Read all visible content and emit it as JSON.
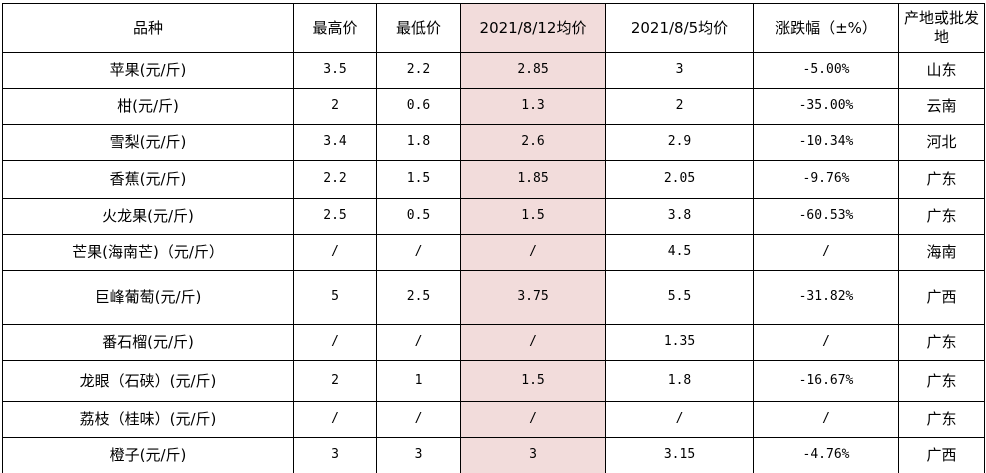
{
  "colors": {
    "highlight_column_bg": "#f2dcdb",
    "border": "#000000",
    "page_bg": "#ffffff",
    "text": "#000000"
  },
  "table": {
    "columns": [
      {
        "key": "name",
        "label": "品种",
        "highlight": false,
        "numeric": false
      },
      {
        "key": "high",
        "label": "最高价",
        "highlight": false,
        "numeric": true
      },
      {
        "key": "low",
        "label": "最低价",
        "highlight": false,
        "numeric": true
      },
      {
        "key": "avg12",
        "label": "2021/8/12均价",
        "highlight": true,
        "numeric": true
      },
      {
        "key": "avg05",
        "label": "2021/8/5均价",
        "highlight": false,
        "numeric": true
      },
      {
        "key": "change",
        "label": "涨跌幅（±%）",
        "highlight": false,
        "numeric": true
      },
      {
        "key": "origin",
        "label": "产地或批发地",
        "highlight": false,
        "numeric": false
      }
    ],
    "rows": [
      [
        "苹果(元/斤)",
        "3.5",
        "2.2",
        "2.85",
        "3",
        "-5.00%",
        "山东"
      ],
      [
        "柑(元/斤)",
        "2",
        "0.6",
        "1.3",
        "2",
        "-35.00%",
        "云南"
      ],
      [
        "雪梨(元/斤)",
        "3.4",
        "1.8",
        "2.6",
        "2.9",
        "-10.34%",
        "河北"
      ],
      [
        "香蕉(元/斤)",
        "2.2",
        "1.5",
        "1.85",
        "2.05",
        "-9.76%",
        "广东"
      ],
      [
        "火龙果(元/斤)",
        "2.5",
        "0.5",
        "1.5",
        "3.8",
        "-60.53%",
        "广东"
      ],
      [
        "芒果(海南芒)（元/斤）",
        "/",
        "/",
        "/",
        "4.5",
        "/",
        "海南"
      ],
      [
        "巨峰葡萄(元/斤)",
        "5",
        "2.5",
        "3.75",
        "5.5",
        "-31.82%",
        "广西"
      ],
      [
        "番石榴(元/斤)",
        "/",
        "/",
        "/",
        "1.35",
        "/",
        "广东"
      ],
      [
        "龙眼（石硖）(元/斤)",
        "2",
        "1",
        "1.5",
        "1.8",
        "-16.67%",
        "广东"
      ],
      [
        "荔枝（桂味）(元/斤)",
        "/",
        "/",
        "/",
        "/",
        "/",
        "广东"
      ],
      [
        "橙子(元/斤)",
        "3",
        "3",
        "3",
        "3.15",
        "-4.76%",
        "广西"
      ]
    ]
  }
}
